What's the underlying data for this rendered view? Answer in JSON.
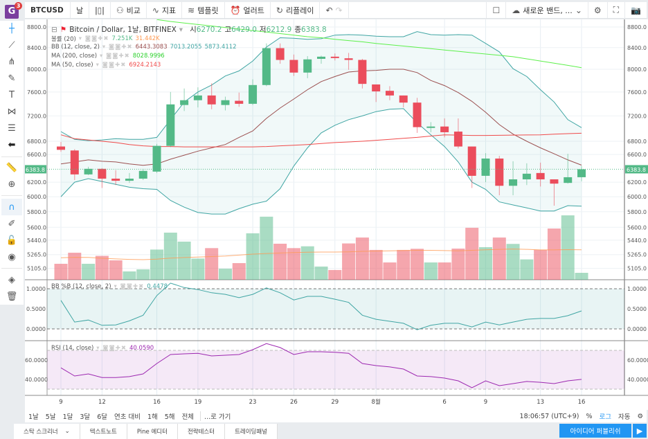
{
  "app": {
    "logo_letter": "G",
    "notif_count": "3"
  },
  "toolbar": {
    "symbol": "BTCUSD",
    "interval": "날",
    "compare": "비교",
    "indicators": "지표",
    "templates": "템플릿",
    "alert": "얼러트",
    "replay": "리플레이",
    "layout_name": "새로운 밴드, ..."
  },
  "legend": {
    "title": "Bitcoin / Dollar, 1날, BITFINEX",
    "o_label": "시",
    "o": "6270.2",
    "h_label": "고",
    "h": "6429.0",
    "l_label": "저",
    "l": "6212.9",
    "c_label": "종",
    "c": "6383.8",
    "vol_label": "볼률 (20)",
    "vol_v": "7.251K",
    "vol_ma": "31.442K",
    "bb_label": "BB (12, close, 2)",
    "bb_mid": "6443.3083",
    "bb_up": "7013.2055",
    "bb_lo": "5873.4112",
    "ma200_label": "MA (200, close)",
    "ma200": "8028.9996",
    "ma50_label": "MA (50, close)",
    "ma50": "6924.2143",
    "pb_label": "BB %B (12, close, 2)",
    "pb": "0.4478",
    "rsi_label": "RSI (14, close)",
    "rsi": "40.0590"
  },
  "colors": {
    "up": "#53b987",
    "down": "#eb4d5c",
    "bb": "#3fa5a3",
    "bbmid": "#9b4f4f",
    "ma200": "#5cf04a",
    "ma50": "#f04a4a",
    "volma": "#ff9a52",
    "rsi": "#9c27b0"
  },
  "chart_data": {
    "type": "candlestick",
    "scale": "log",
    "price_ticks": [
      "8800.0",
      "8400.0",
      "8000.0",
      "7600.0",
      "7200.0",
      "6800.0",
      "6600.0",
      "6200.0",
      "6000.0",
      "5800.0",
      "5600.0",
      "5440.0",
      "5265.0",
      "5105.0"
    ],
    "last_price": "6383.8",
    "x_ticks": [
      {
        "i": 0,
        "label": "9"
      },
      {
        "i": 3,
        "label": "12"
      },
      {
        "i": 7,
        "label": "16"
      },
      {
        "i": 10,
        "label": "19"
      },
      {
        "i": 14,
        "label": "23"
      },
      {
        "i": 17,
        "label": "26"
      },
      {
        "i": 20,
        "label": "29"
      },
      {
        "i": 23,
        "label": "8월"
      },
      {
        "i": 28,
        "label": "6"
      },
      {
        "i": 31,
        "label": "9"
      },
      {
        "i": 35,
        "label": "13"
      },
      {
        "i": 38,
        "label": "16"
      }
    ],
    "ohlcv": [
      [
        6720,
        6790,
        6640,
        6670,
        16.7
      ],
      [
        6660,
        6680,
        6230,
        6310,
        28.3
      ],
      [
        6310,
        6420,
        6300,
        6390,
        16.7
      ],
      [
        6390,
        6400,
        6120,
        6250,
        25
      ],
      [
        6250,
        6370,
        6160,
        6220,
        20.3
      ],
      [
        6220,
        6330,
        6190,
        6250,
        8.7
      ],
      [
        6250,
        6390,
        6230,
        6360,
        10.9
      ],
      [
        6350,
        6760,
        6330,
        6730,
        31.6
      ],
      [
        6730,
        7600,
        6710,
        7390,
        49.3
      ],
      [
        7380,
        7660,
        7280,
        7460,
        39.9
      ],
      [
        7460,
        7680,
        7340,
        7540,
        22.2
      ],
      [
        7540,
        7750,
        7310,
        7390,
        33.1
      ],
      [
        7380,
        7520,
        7290,
        7460,
        11.6
      ],
      [
        7450,
        7590,
        7350,
        7400,
        17.4
      ],
      [
        7400,
        7820,
        7380,
        7720,
        48.6
      ],
      [
        7720,
        8480,
        7700,
        8390,
        66
      ],
      [
        8390,
        8480,
        8100,
        8170,
        37.7
      ],
      [
        8170,
        8270,
        7880,
        7940,
        33.1
      ],
      [
        7940,
        8240,
        7840,
        8180,
        35
      ],
      [
        8190,
        8250,
        8100,
        8230,
        13.8
      ],
      [
        8230,
        8290,
        8160,
        8210,
        10.2
      ],
      [
        8200,
        8300,
        7990,
        8170,
        38
      ],
      [
        8170,
        8190,
        7660,
        7740,
        44.2
      ],
      [
        7730,
        7730,
        7430,
        7610,
        31.2
      ],
      [
        7620,
        7700,
        7460,
        7540,
        18.1
      ],
      [
        7540,
        7540,
        7340,
        7420,
        31.2
      ],
      [
        7420,
        7500,
        6930,
        7020,
        32.4
      ],
      [
        7010,
        7100,
        6940,
        7030,
        18.1
      ],
      [
        7030,
        7160,
        6860,
        6940,
        18.1
      ],
      [
        6950,
        7160,
        6690,
        6720,
        32.6
      ],
      [
        6720,
        6720,
        6120,
        6290,
        54.4
      ],
      [
        6290,
        6620,
        6200,
        6540,
        34.1
      ],
      [
        6540,
        6580,
        6020,
        6150,
        44.2
      ],
      [
        6150,
        6500,
        6020,
        6240,
        37.5
      ],
      [
        6240,
        6470,
        6160,
        6320,
        21.3
      ],
      [
        6330,
        6480,
        6140,
        6240,
        31.2
      ],
      [
        6240,
        6240,
        5880,
        6180,
        53.6
      ],
      [
        6190,
        6610,
        6180,
        6270,
        67.4
      ],
      [
        6270.2,
        6429,
        6212.9,
        6383.8,
        7.25
      ]
    ],
    "bb_upper": [
      6950,
      6830,
      6810,
      6820,
      6840,
      6830,
      6830,
      6860,
      7140,
      7430,
      7600,
      7720,
      7880,
      7970,
      8150,
      8410,
      8590,
      8580,
      8560,
      8570,
      8640,
      8650,
      8640,
      8620,
      8610,
      8610,
      8710,
      8650,
      8640,
      8650,
      8640,
      8480,
      8320,
      8010,
      7870,
      7640,
      7430,
      7140,
      7013
    ],
    "bb_mid": [
      6460,
      6490,
      6520,
      6500,
      6490,
      6460,
      6440,
      6460,
      6530,
      6590,
      6650,
      6700,
      6750,
      6860,
      6960,
      7160,
      7330,
      7480,
      7640,
      7780,
      7870,
      7950,
      7970,
      7980,
      8000,
      8000,
      7940,
      7800,
      7710,
      7590,
      7440,
      7260,
      7060,
      6910,
      6800,
      6700,
      6610,
      6520,
      6443
    ],
    "bb_lower": [
      6000,
      6200,
      6250,
      6210,
      6170,
      6130,
      6110,
      6100,
      5950,
      5860,
      5790,
      5770,
      5770,
      5840,
      5900,
      5940,
      6110,
      6430,
      6700,
      6930,
      7050,
      7140,
      7200,
      7270,
      7310,
      7320,
      7090,
      6900,
      6720,
      6490,
      6200,
      6100,
      5930,
      5890,
      5850,
      5810,
      5810,
      5880,
      5873
    ],
    "ma50": [
      6900,
      6840,
      6820,
      6800,
      6780,
      6750,
      6730,
      6720,
      6720,
      6715,
      6715,
      6715,
      6715,
      6715,
      6715,
      6720,
      6730,
      6740,
      6750,
      6765,
      6780,
      6790,
      6800,
      6815,
      6830,
      6845,
      6860,
      6880,
      6900,
      6895,
      6890,
      6890,
      6892,
      6895,
      6897,
      6900,
      6910,
      6918,
      6924
    ],
    "ma200": [
      null,
      null,
      null,
      null,
      null,
      null,
      null,
      8950,
      8910,
      8880,
      8850,
      8820,
      8790,
      8760,
      8730,
      8700,
      8670,
      8640,
      8610,
      8590,
      8560,
      8535,
      8510,
      8480,
      8455,
      8430,
      8405,
      8380,
      8355,
      8330,
      8305,
      8280,
      8255,
      8230,
      8190,
      8150,
      8110,
      8070,
      8029
    ],
    "vol_ma": [
      23,
      23.5,
      23.4,
      22.5,
      21.8,
      21.3,
      21,
      21.6,
      22.6,
      23.3,
      23.8,
      24.3,
      24.8,
      25.8,
      26.8,
      27.5,
      28,
      28.5,
      28.8,
      29,
      29,
      29.2,
      29.7,
      30,
      30.2,
      30.5,
      30.8,
      30.8,
      30.5,
      30.3,
      30.8,
      31.3,
      31.8,
      32.2,
      31.8,
      31.2,
      31.2,
      31.5,
      31.4
    ],
    "pctb": [
      0.71,
      0.17,
      0.22,
      0.09,
      0.1,
      0.2,
      0.34,
      0.83,
      1.14,
      1.03,
      0.98,
      0.9,
      0.86,
      0.78,
      0.86,
      1.02,
      0.9,
      0.72,
      0.81,
      0.81,
      0.74,
      0.66,
      0.34,
      0.24,
      0.19,
      0.14,
      -0.02,
      0.09,
      0.14,
      0.14,
      0.05,
      0.17,
      0.1,
      0.17,
      0.24,
      0.26,
      0.26,
      0.33,
      0.4478
    ],
    "pctb_ticks": [
      "1.0000",
      "0.5000",
      "0.0000"
    ],
    "rsi": [
      52,
      43.6,
      45.7,
      42,
      42,
      42.9,
      45.7,
      56.4,
      65.7,
      66.4,
      67,
      64.3,
      65,
      65.7,
      70.7,
      77,
      72.9,
      65.7,
      68.6,
      68.6,
      68,
      67,
      56.4,
      54.3,
      52.9,
      50.7,
      43.6,
      42.9,
      41.4,
      38.6,
      31.4,
      38.6,
      33.6,
      35.7,
      37.9,
      37.1,
      35.7,
      38.6,
      40.059
    ],
    "rsi_ticks": [
      "60.0000",
      "40.0000"
    ]
  },
  "range": {
    "items": [
      "1날",
      "5날",
      "1달",
      "3달",
      "6달",
      "연초 대비",
      "1해",
      "5해",
      "전체"
    ],
    "goto": "...로 가기",
    "clock": "18:06:57 (UTC+9)",
    "percent": "%",
    "log": "로그",
    "auto": "자동"
  },
  "bottom_tabs": [
    "스탁 스크리너",
    "텍스트노트",
    "Pine 에디터",
    "전략테스터",
    "트레이딩패널"
  ],
  "publish": "아이디어 퍼블리쉬"
}
